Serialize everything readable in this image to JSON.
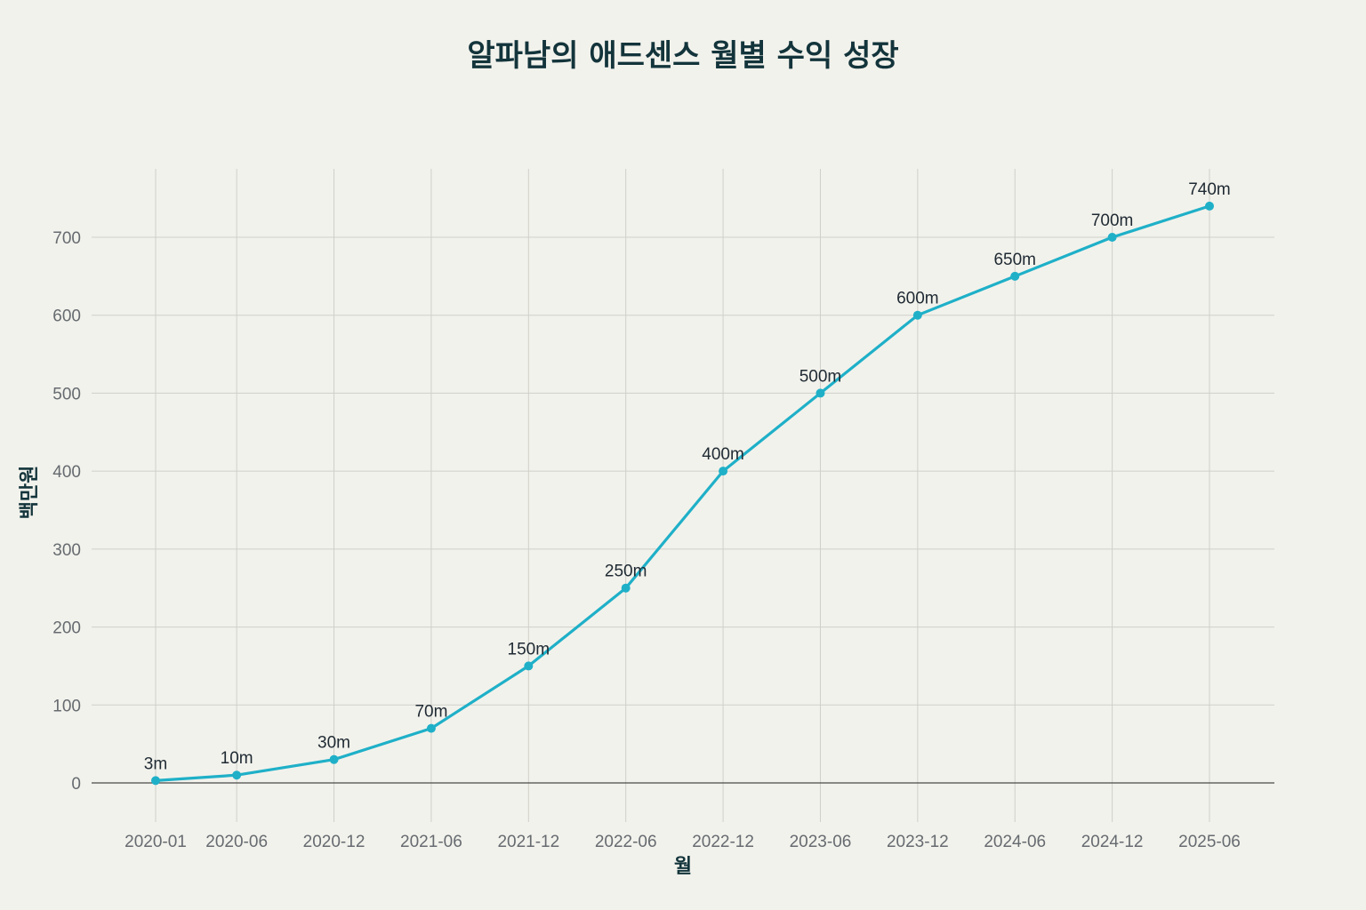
{
  "chart_data": {
    "type": "line",
    "title": "알파남의 애드센스 월별 수익 성장",
    "xlabel": "월",
    "ylabel": "백만원",
    "categories": [
      "2020-01",
      "2020-06",
      "2020-12",
      "2021-06",
      "2021-12",
      "2022-06",
      "2022-12",
      "2023-06",
      "2023-12",
      "2024-06",
      "2024-12",
      "2025-06"
    ],
    "series": [
      {
        "values": [
          3,
          10,
          30,
          70,
          150,
          250,
          400,
          500,
          600,
          650,
          700,
          740
        ],
        "data_labels": [
          "3m",
          "10m",
          "30m",
          "70m",
          "150m",
          "250m",
          "400m",
          "500m",
          "600m",
          "650m",
          "700m",
          "740m"
        ]
      }
    ],
    "yticks": [
      "0",
      "100",
      "200",
      "300",
      "400",
      "500",
      "600",
      "700"
    ],
    "ylim": [
      -50,
      790
    ],
    "grid": true,
    "legend": "none",
    "colors": {
      "line": "#1fb0c8",
      "background": "#f2f2ec",
      "grid": "#d0d0ca"
    }
  }
}
